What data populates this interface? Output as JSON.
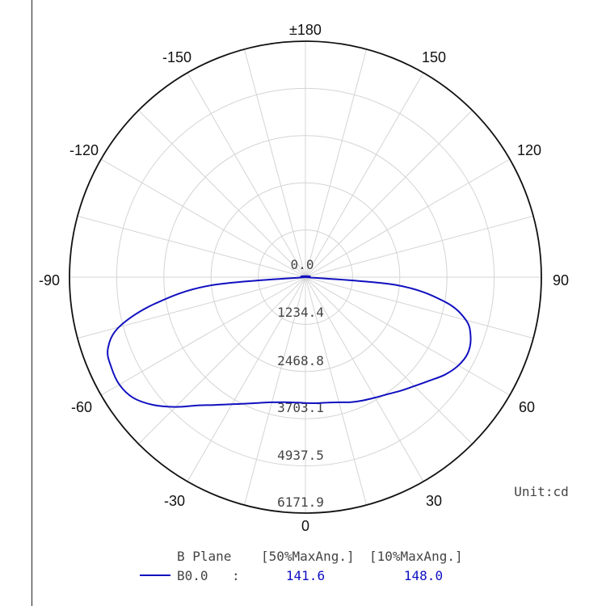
{
  "chart_data": {
    "type": "polar-line",
    "unit_label": "Unit:cd",
    "angle_labels": [
      "±180",
      "150",
      "120",
      "90",
      "60",
      "30",
      "0",
      "-30",
      "-60",
      "-90",
      "-120",
      "-150"
    ],
    "radial_ticks": [
      0.0,
      1234.4,
      2468.8,
      3703.1,
      4937.5,
      6171.9
    ],
    "radial_tick_labels": [
      "0.0",
      "1234.4",
      "2468.8",
      "3703.1",
      "4937.5",
      "6171.9"
    ],
    "rmax": 6171.9,
    "grid": true,
    "angle_step_deg": 15,
    "legend": {
      "header_plane": "B Plane",
      "header_col1": "[50%MaxAng.]",
      "header_col2": "[10%MaxAng.]",
      "series_label": "B0.0",
      "separator": ":",
      "value_50": "141.6",
      "value_10": "148.0"
    },
    "series": [
      {
        "name": "B0.0",
        "color": "#1010c0",
        "points": [
          {
            "angle": 0,
            "value": 3290
          },
          {
            "angle": 5,
            "value": 3310
          },
          {
            "angle": 10,
            "value": 3330
          },
          {
            "angle": 15,
            "value": 3390
          },
          {
            "angle": 20,
            "value": 3480
          },
          {
            "angle": 25,
            "value": 3560
          },
          {
            "angle": 30,
            "value": 3640
          },
          {
            "angle": 35,
            "value": 3740
          },
          {
            "angle": 40,
            "value": 3880
          },
          {
            "angle": 45,
            "value": 4030
          },
          {
            "angle": 50,
            "value": 4220
          },
          {
            "angle": 55,
            "value": 4450
          },
          {
            "angle": 60,
            "value": 4620
          },
          {
            "angle": 65,
            "value": 4690
          },
          {
            "angle": 70,
            "value": 4600
          },
          {
            "angle": 75,
            "value": 4350
          },
          {
            "angle": 80,
            "value": 3700
          },
          {
            "angle": 85,
            "value": 2400
          },
          {
            "angle": 90,
            "value": 0
          },
          {
            "angle": -90,
            "value": 0
          },
          {
            "angle": -85,
            "value": 2500
          },
          {
            "angle": -80,
            "value": 4000
          },
          {
            "angle": -75,
            "value": 5050
          },
          {
            "angle": -70,
            "value": 5500
          },
          {
            "angle": -65,
            "value": 5600
          },
          {
            "angle": -60,
            "value": 5620
          },
          {
            "angle": -55,
            "value": 5500
          },
          {
            "angle": -50,
            "value": 5200
          },
          {
            "angle": -45,
            "value": 4800
          },
          {
            "angle": -40,
            "value": 4380
          },
          {
            "angle": -35,
            "value": 4080
          },
          {
            "angle": -30,
            "value": 3840
          },
          {
            "angle": -25,
            "value": 3650
          },
          {
            "angle": -20,
            "value": 3500
          },
          {
            "angle": -15,
            "value": 3390
          },
          {
            "angle": -10,
            "value": 3320
          },
          {
            "angle": -5,
            "value": 3290
          },
          {
            "angle": 0,
            "value": 3290
          }
        ]
      }
    ]
  }
}
